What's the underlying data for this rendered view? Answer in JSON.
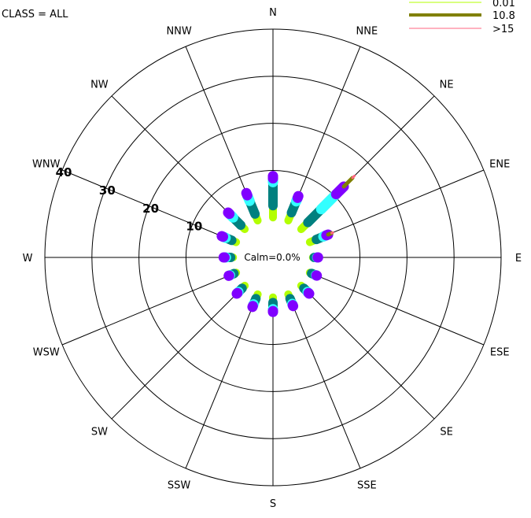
{
  "chart_data": {
    "type": "windrose",
    "class_label": "CLASS = ALL",
    "calm_label": "Calm=0.0%",
    "directions": [
      "N",
      "NNE",
      "NE",
      "ENE",
      "E",
      "ESE",
      "SE",
      "SSE",
      "S",
      "SSW",
      "SW",
      "WSW",
      "W",
      "WNW",
      "NW",
      "NNW"
    ],
    "ring_values": [
      10,
      20,
      30,
      40
    ],
    "ring_labels": [
      "10",
      "20",
      "30",
      "40"
    ],
    "calm_radius_value": 10,
    "max_value": 40,
    "speed_bins": [
      {
        "name": "",
        "color": "#b3ff00"
      },
      {
        "name": "",
        "color": "#00807f"
      },
      {
        "name": "",
        "color": "#33ffff"
      },
      {
        "name": "",
        "color": "#8000ff"
      },
      {
        "name": "10.8",
        "color": "#808000"
      },
      {
        "name": ">15",
        "color": "#ff6680"
      }
    ],
    "legend_entries": [
      {
        "label": "0.01",
        "color": "#b3ff00"
      },
      {
        "label": "10.8",
        "color": "#808000"
      },
      {
        "label": ">15",
        "color": "#ff6680"
      }
    ],
    "series_by_direction": [
      [
        2.5,
        5.0,
        0.8,
        0.5,
        0.0,
        0.0
      ],
      [
        1.8,
        2.6,
        0.8,
        0.4,
        0.0,
        0.0
      ],
      [
        2.0,
        4.0,
        4.5,
        2.3,
        2.6,
        0.6
      ],
      [
        1.5,
        1.6,
        0.7,
        0.4,
        0.8,
        0.3
      ],
      [
        0.3,
        0.6,
        0.1,
        0.1,
        0.0,
        0.0
      ],
      [
        0.4,
        1.0,
        0.1,
        0.1,
        0.0,
        0.0
      ],
      [
        0.8,
        1.1,
        0.3,
        0.2,
        0.0,
        0.0
      ],
      [
        1.0,
        1.2,
        0.3,
        0.2,
        0.0,
        0.0
      ],
      [
        1.1,
        1.4,
        0.4,
        0.2,
        0.0,
        0.0
      ],
      [
        1.0,
        1.3,
        0.4,
        0.2,
        0.0,
        0.0
      ],
      [
        0.8,
        1.1,
        0.3,
        0.2,
        0.0,
        0.0
      ],
      [
        0.5,
        0.9,
        0.2,
        0.1,
        0.0,
        0.0
      ],
      [
        0.5,
        1.0,
        0.3,
        0.2,
        0.0,
        0.0
      ],
      [
        1.0,
        1.4,
        0.6,
        0.3,
        0.0,
        0.0
      ],
      [
        1.2,
        2.3,
        1.1,
        0.4,
        0.0,
        0.0
      ],
      [
        1.5,
        3.0,
        1.3,
        0.5,
        0.0,
        0.0
      ]
    ]
  }
}
